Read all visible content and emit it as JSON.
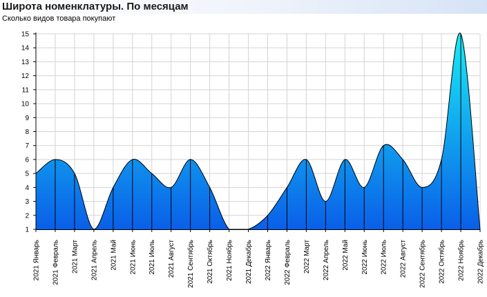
{
  "header": {
    "title": "Широта номенклатуры. По месяцам",
    "subtitle": "Сколько видов товара покупают"
  },
  "chart_data": {
    "type": "area",
    "title": "Широта номенклатуры. По месяцам",
    "subtitle": "Сколько видов товара покупают",
    "xlabel": "",
    "ylabel": "",
    "ylim": [
      1,
      15
    ],
    "yticks": [
      1,
      2,
      3,
      4,
      5,
      6,
      7,
      8,
      9,
      10,
      11,
      12,
      13,
      14,
      15
    ],
    "grid": true,
    "legend": "none",
    "colors": {
      "fill_top": "#19ecf5",
      "fill_bottom": "#0a5fe8",
      "stroke": "#000000",
      "grid": "#d3d3d3"
    },
    "categories": [
      "2021 Январь",
      "2021 Февраль",
      "2021 Март",
      "2021 Апрель",
      "2021 Май",
      "2021 Июнь",
      "2021 Июль",
      "2021 Август",
      "2021 Сентябрь",
      "2021 Октябрь",
      "2021 Ноябрь",
      "2021 Декабрь",
      "2022 Январь",
      "2022 Февраль",
      "2022 Март",
      "2022 Апрель",
      "2022 Май",
      "2022 Июнь",
      "2022 Июль",
      "2022 Август",
      "2022 Сентябрь",
      "2022 Октябрь",
      "2022 Ноябрь",
      "2022 Декабрь"
    ],
    "values": [
      5,
      6,
      5,
      1,
      4,
      6,
      5,
      4,
      6,
      4,
      1,
      1,
      2,
      4,
      6,
      3,
      6,
      4,
      7,
      6,
      4,
      6,
      15,
      1
    ]
  }
}
